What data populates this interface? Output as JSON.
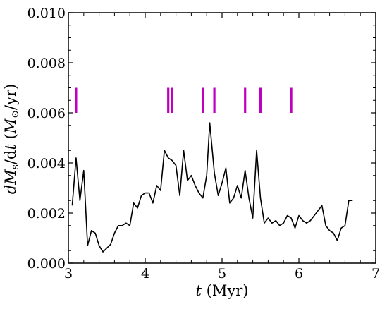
{
  "chart_data": {
    "type": "line",
    "title": "",
    "xlabel": "t (Myr)",
    "ylabel": "dM_s/dt (M_⊙/yr)",
    "xlim": [
      3,
      7
    ],
    "ylim": [
      0.0,
      0.01
    ],
    "xticks": [
      3,
      4,
      5,
      6,
      7
    ],
    "xtick_labels": [
      "3",
      "4",
      "5",
      "6",
      "7"
    ],
    "yticks": [
      0.0,
      0.002,
      0.004,
      0.006,
      0.008,
      0.01
    ],
    "ytick_labels": [
      "0.000",
      "0.002",
      "0.004",
      "0.006",
      "0.008",
      "0.010"
    ],
    "grid": false,
    "series": [
      {
        "color": "#000000",
        "x": [
          3.05,
          3.1,
          3.15,
          3.2,
          3.25,
          3.3,
          3.35,
          3.4,
          3.45,
          3.5,
          3.55,
          3.6,
          3.65,
          3.7,
          3.75,
          3.8,
          3.85,
          3.9,
          3.95,
          4.0,
          4.05,
          4.1,
          4.15,
          4.2,
          4.25,
          4.3,
          4.35,
          4.4,
          4.45,
          4.5,
          4.55,
          4.6,
          4.65,
          4.7,
          4.75,
          4.8,
          4.84,
          4.9,
          4.95,
          5.0,
          5.05,
          5.1,
          5.15,
          5.2,
          5.25,
          5.3,
          5.35,
          5.4,
          5.45,
          5.5,
          5.55,
          5.6,
          5.65,
          5.7,
          5.75,
          5.8,
          5.85,
          5.9,
          5.95,
          6.0,
          6.05,
          6.1,
          6.15,
          6.2,
          6.25,
          6.3,
          6.35,
          6.4,
          6.45,
          6.5,
          6.55,
          6.6,
          6.65,
          6.7
        ],
        "y": [
          0.0023,
          0.0042,
          0.0025,
          0.0037,
          0.0007,
          0.0013,
          0.0012,
          0.0007,
          0.00045,
          0.0006,
          0.00075,
          0.0012,
          0.0015,
          0.0015,
          0.0016,
          0.0015,
          0.0024,
          0.0022,
          0.0027,
          0.0028,
          0.0028,
          0.0024,
          0.0031,
          0.0029,
          0.0045,
          0.0042,
          0.0041,
          0.0039,
          0.0027,
          0.0045,
          0.0033,
          0.0035,
          0.0031,
          0.0028,
          0.0026,
          0.0035,
          0.0056,
          0.0036,
          0.0027,
          0.0032,
          0.0038,
          0.0024,
          0.0026,
          0.0031,
          0.0026,
          0.0037,
          0.0026,
          0.0018,
          0.0045,
          0.0026,
          0.0016,
          0.0018,
          0.0016,
          0.0017,
          0.0015,
          0.0016,
          0.0019,
          0.0018,
          0.0014,
          0.0019,
          0.0017,
          0.0016,
          0.0017,
          0.0019,
          0.0021,
          0.0023,
          0.0015,
          0.0013,
          0.0012,
          0.0009,
          0.0014,
          0.0015,
          0.0025,
          0.0025
        ]
      }
    ],
    "markers": {
      "color": "#c000c0",
      "x": [
        3.1,
        4.3,
        4.35,
        4.75,
        4.9,
        5.3,
        5.5,
        5.9
      ],
      "y_range": [
        0.006,
        0.007
      ]
    }
  }
}
